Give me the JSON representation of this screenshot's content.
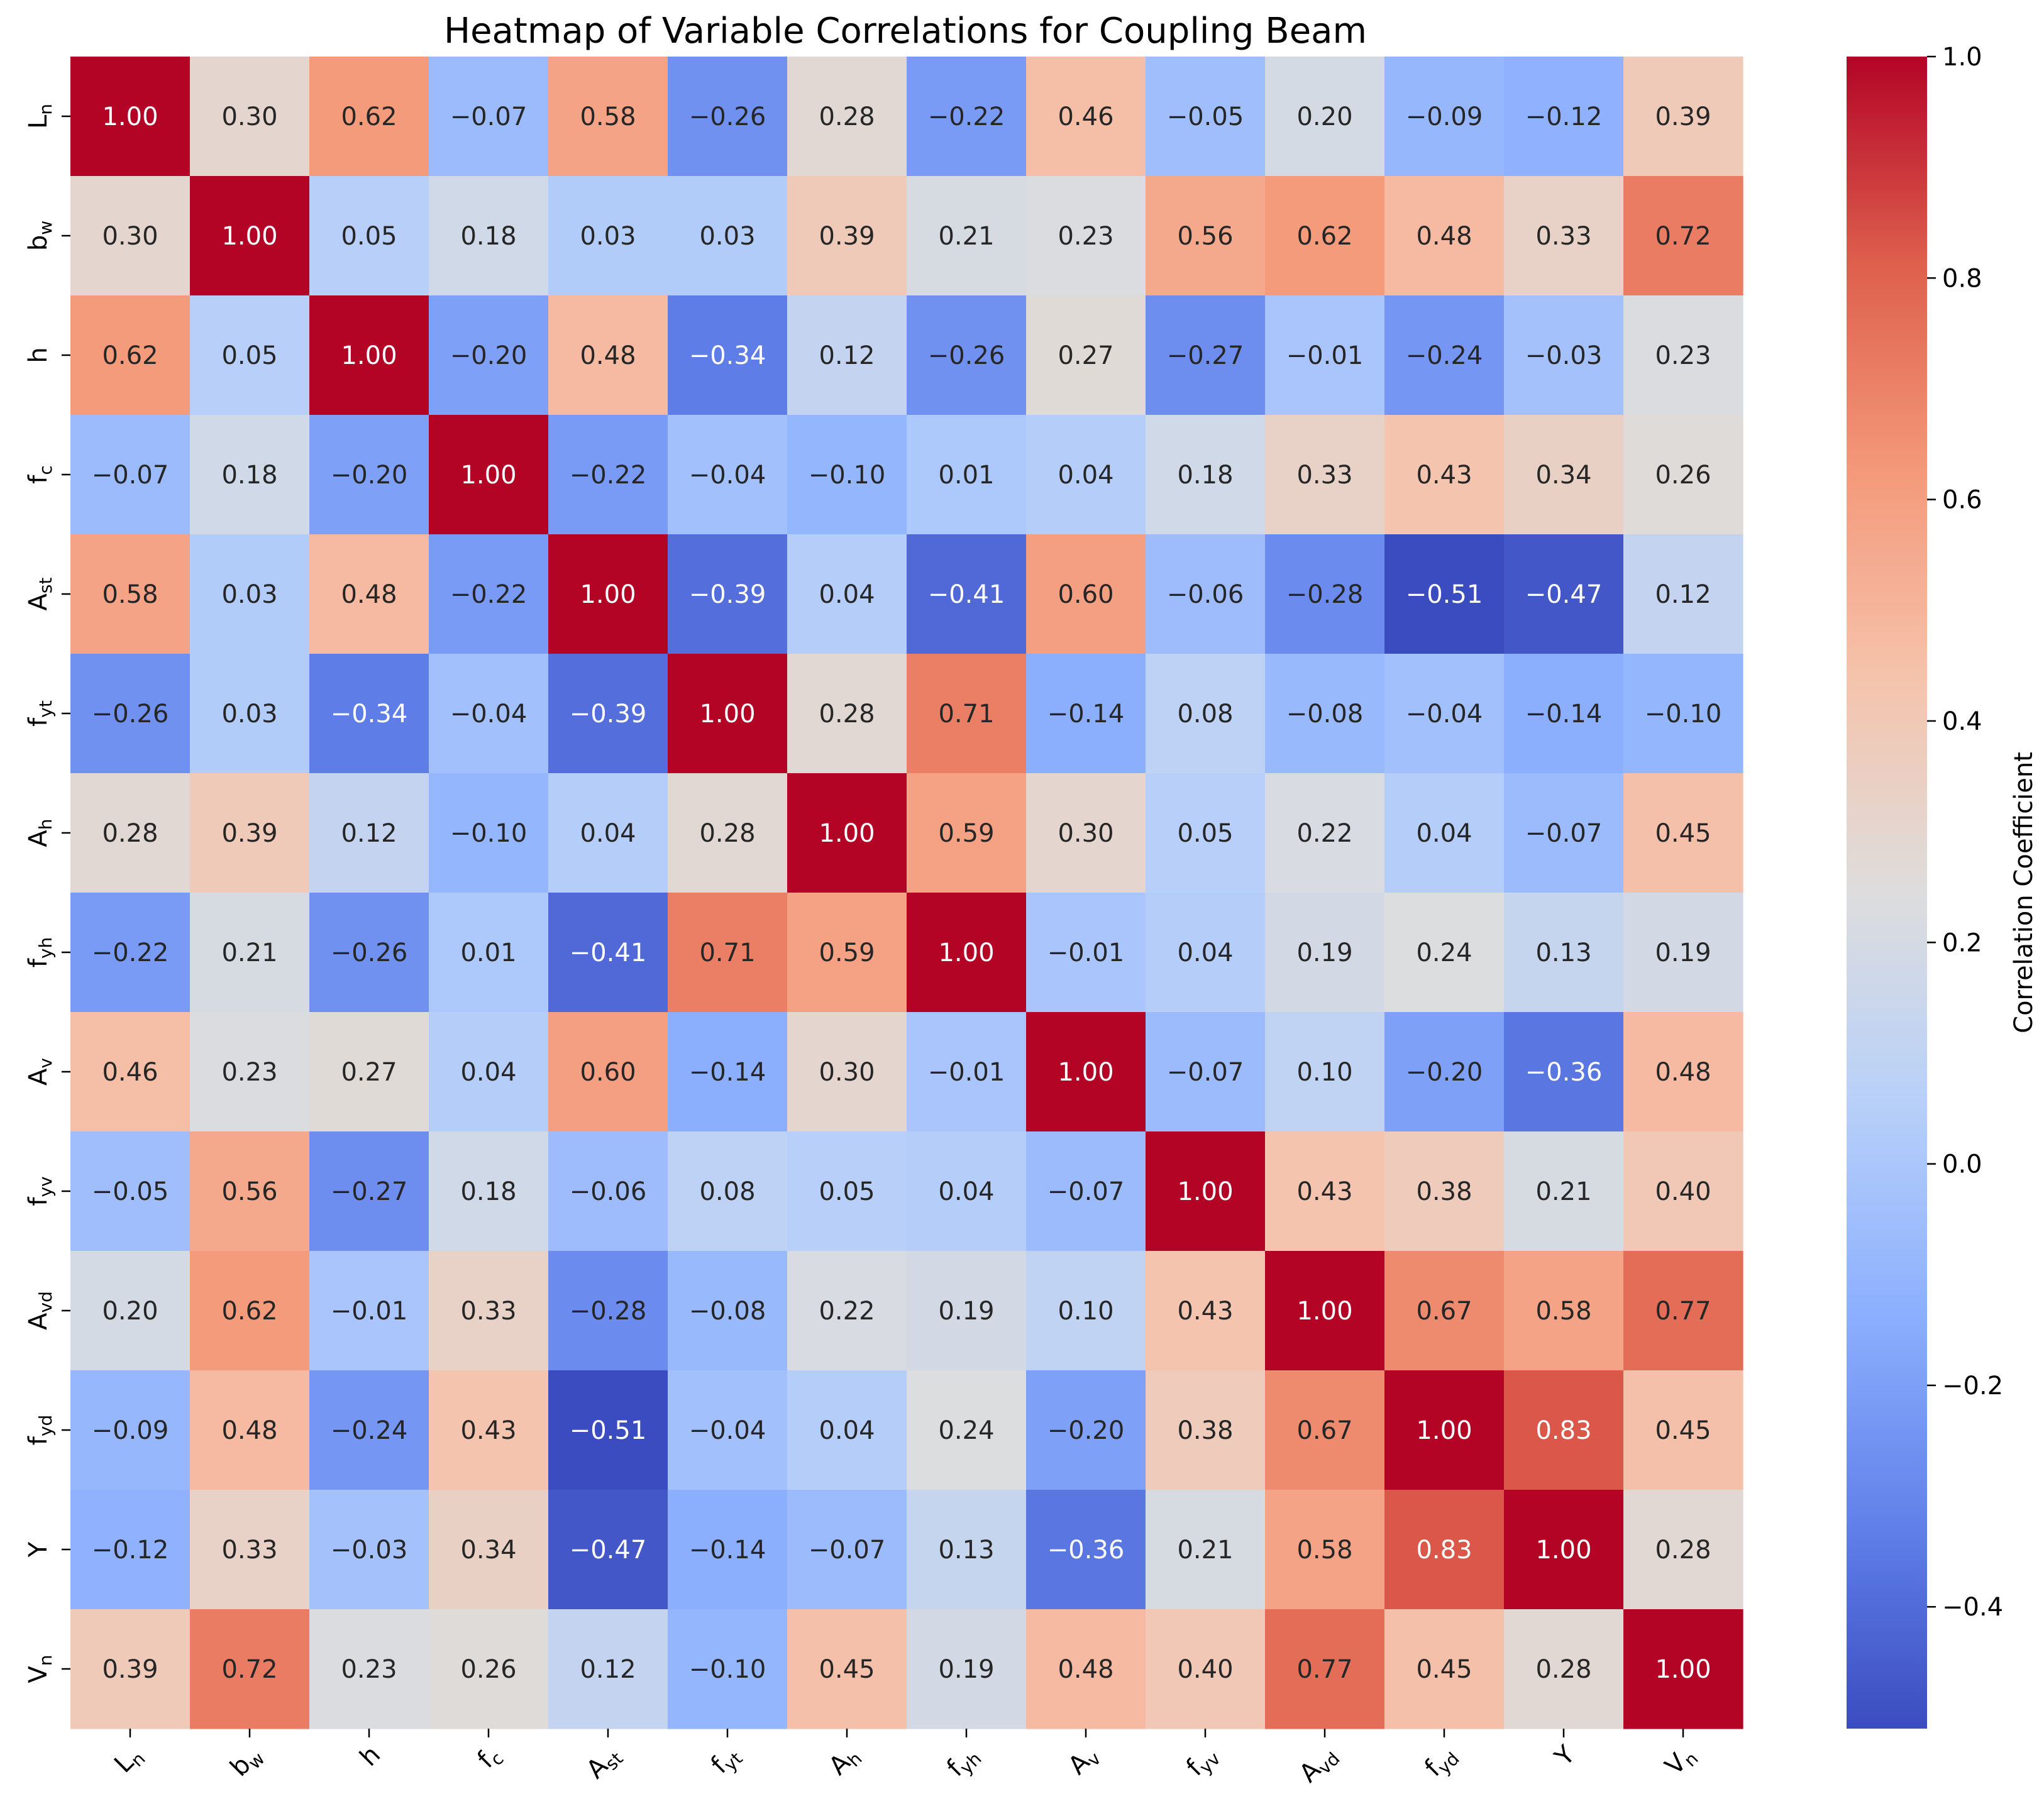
{
  "chart_data": {
    "type": "heatmap",
    "title": "Heatmap of Variable Correlations for Coupling Beam",
    "variables": [
      {
        "base": "L",
        "sub": "n"
      },
      {
        "base": "b",
        "sub": "w"
      },
      {
        "base": "h",
        "sub": ""
      },
      {
        "base": "f",
        "sub": "c"
      },
      {
        "base": "A",
        "sub": "st"
      },
      {
        "base": "f",
        "sub": "yt"
      },
      {
        "base": "A",
        "sub": "h"
      },
      {
        "base": "f",
        "sub": "yh"
      },
      {
        "base": "A",
        "sub": "v"
      },
      {
        "base": "f",
        "sub": "yv"
      },
      {
        "base": "A",
        "sub": "vd"
      },
      {
        "base": "f",
        "sub": "yd"
      },
      {
        "base": "Y",
        "sub": ""
      },
      {
        "base": "V",
        "sub": "n"
      }
    ],
    "matrix": [
      [
        1.0,
        0.3,
        0.62,
        -0.07,
        0.58,
        -0.26,
        0.28,
        -0.22,
        0.46,
        -0.05,
        0.2,
        -0.09,
        -0.12,
        0.39
      ],
      [
        0.3,
        1.0,
        0.05,
        0.18,
        0.03,
        0.03,
        0.39,
        0.21,
        0.23,
        0.56,
        0.62,
        0.48,
        0.33,
        0.72
      ],
      [
        0.62,
        0.05,
        1.0,
        -0.2,
        0.48,
        -0.34,
        0.12,
        -0.26,
        0.27,
        -0.27,
        -0.01,
        -0.24,
        -0.03,
        0.23
      ],
      [
        -0.07,
        0.18,
        -0.2,
        1.0,
        -0.22,
        -0.04,
        -0.1,
        0.01,
        0.04,
        0.18,
        0.33,
        0.43,
        0.34,
        0.26
      ],
      [
        0.58,
        0.03,
        0.48,
        -0.22,
        1.0,
        -0.39,
        0.04,
        -0.41,
        0.6,
        -0.06,
        -0.28,
        -0.51,
        -0.47,
        0.12
      ],
      [
        -0.26,
        0.03,
        -0.34,
        -0.04,
        -0.39,
        1.0,
        0.28,
        0.71,
        -0.14,
        0.08,
        -0.08,
        -0.04,
        -0.14,
        -0.1
      ],
      [
        0.28,
        0.39,
        0.12,
        -0.1,
        0.04,
        0.28,
        1.0,
        0.59,
        0.3,
        0.05,
        0.22,
        0.04,
        -0.07,
        0.45
      ],
      [
        -0.22,
        0.21,
        -0.26,
        0.01,
        -0.41,
        0.71,
        0.59,
        1.0,
        -0.01,
        0.04,
        0.19,
        0.24,
        0.13,
        0.19
      ],
      [
        0.46,
        0.23,
        0.27,
        0.04,
        0.6,
        -0.14,
        0.3,
        -0.01,
        1.0,
        -0.07,
        0.1,
        -0.2,
        -0.36,
        0.48
      ],
      [
        -0.05,
        0.56,
        -0.27,
        0.18,
        -0.06,
        0.08,
        0.05,
        0.04,
        -0.07,
        1.0,
        0.43,
        0.38,
        0.21,
        0.4
      ],
      [
        0.2,
        0.62,
        -0.01,
        0.33,
        -0.28,
        -0.08,
        0.22,
        0.19,
        0.1,
        0.43,
        1.0,
        0.67,
        0.58,
        0.77
      ],
      [
        -0.09,
        0.48,
        -0.24,
        0.43,
        -0.51,
        -0.04,
        0.04,
        0.24,
        -0.2,
        0.38,
        0.67,
        1.0,
        0.83,
        0.45
      ],
      [
        -0.12,
        0.33,
        -0.03,
        0.34,
        -0.47,
        -0.14,
        -0.07,
        0.13,
        -0.36,
        0.21,
        0.58,
        0.83,
        1.0,
        0.28
      ],
      [
        0.39,
        0.72,
        0.23,
        0.26,
        0.12,
        -0.1,
        0.45,
        0.19,
        0.48,
        0.4,
        0.77,
        0.45,
        0.28,
        1.0
      ]
    ],
    "value_format": "2 decimals, minus sign as −",
    "colormap": "coolwarm",
    "vmin": -0.51,
    "vmax": 1.0,
    "colorbar": {
      "label": "Correlation Coefficient",
      "ticks": [
        -0.4,
        -0.2,
        0.0,
        0.2,
        0.4,
        0.6,
        0.8,
        1.0
      ],
      "tick_labels": [
        "−0.4",
        "−0.2",
        "0.0",
        "0.2",
        "0.4",
        "0.6",
        "0.8",
        "1.0"
      ]
    },
    "legend_placement": "right"
  },
  "colors": {
    "low": "#3b4cc0",
    "mid": "#dddddd",
    "high": "#b40426",
    "text_dark": "#262626",
    "text_light": "#ffffff"
  }
}
